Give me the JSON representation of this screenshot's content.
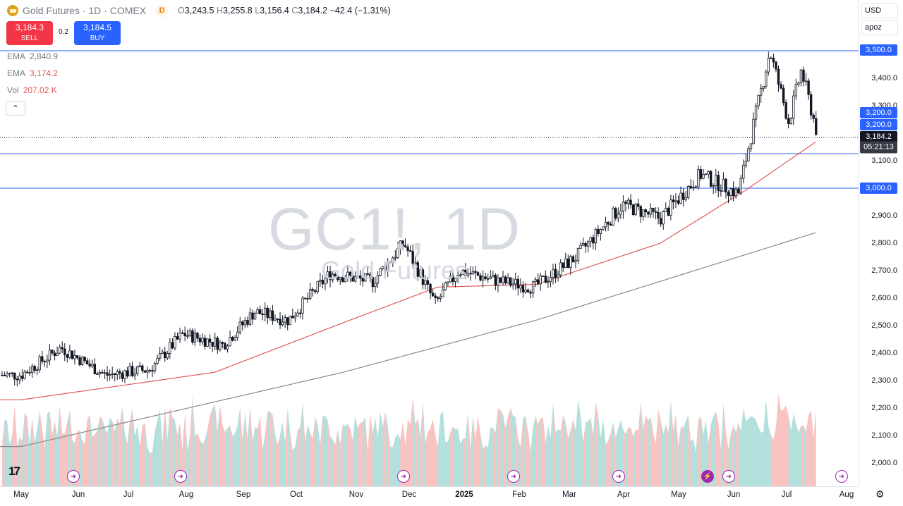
{
  "header": {
    "title": "Gold Futures · 1D · COMEX",
    "badge": "D",
    "open_label": "O",
    "open": "3,243.5",
    "high_label": "H",
    "high": "3,255.8",
    "low_label": "L",
    "low": "3,156.4",
    "close_label": "C",
    "close": "3,184.2",
    "change": "−42.4 (−1.31%)"
  },
  "trade": {
    "sell_price": "3,184.3",
    "sell_label": "SELL",
    "spread": "0.2",
    "buy_price": "3,184.5",
    "buy_label": "BUY"
  },
  "indicators": [
    {
      "name": "EMA",
      "value": "2,840.9",
      "color": "#787b86"
    },
    {
      "name": "EMA",
      "value": "3,174.2",
      "color": "#e05a5a"
    },
    {
      "name": "Vol",
      "value": "207.02 K",
      "color": "#e05a5a"
    }
  ],
  "collapse_icon": "chevron-up-icon",
  "watermark": {
    "symbol": "GC1!, 1D",
    "name": "Gold Futures"
  },
  "price_axis": {
    "currency": "USD",
    "unit_select": "apoz",
    "ticks": [
      "3,400.0",
      "3,300.0",
      "3,100.0",
      "2,900.0",
      "2,800.0",
      "2,700.0",
      "2,600.0",
      "2,500.0",
      "2,400.0",
      "2,300.0",
      "2,200.0",
      "2,100.0",
      "2,000.0"
    ],
    "labels": {
      "l3500": "3,500.0",
      "l3200a": "3,200.0",
      "l3200b": "3,200.0",
      "last": "3,184.2",
      "countdown": "05:21:13",
      "l3000": "3,000.0"
    }
  },
  "time_axis": {
    "ticks": [
      "May",
      "Jun",
      "Jul",
      "Aug",
      "Sep",
      "Oct",
      "Nov",
      "Dec",
      "2025",
      "Feb",
      "Mar",
      "Apr",
      "May",
      "Jun",
      "Jul",
      "Aug"
    ]
  },
  "colors": {
    "up": "#131722",
    "down": "#131722",
    "ema_fast": "#e05a5a",
    "ema_slow": "#8a8a8a",
    "hline": "#2962ff",
    "vol_up": "#26a69a",
    "vol_down": "#ef5350"
  },
  "chart_data": {
    "type": "candlestick",
    "symbol": "GC1!",
    "timeframe": "1D",
    "y_range": [
      1965,
      3535
    ],
    "horizontal_lines": [
      3500,
      3000,
      3200
    ],
    "last_price": 3184.2,
    "close_trajectory": [
      {
        "date": "2024-05-01",
        "close": 2320
      },
      {
        "date": "2024-05-20",
        "close": 2420
      },
      {
        "date": "2024-06-10",
        "close": 2320
      },
      {
        "date": "2024-07-01",
        "close": 2340
      },
      {
        "date": "2024-07-17",
        "close": 2470
      },
      {
        "date": "2024-08-05",
        "close": 2430
      },
      {
        "date": "2024-08-20",
        "close": 2550
      },
      {
        "date": "2024-09-05",
        "close": 2520
      },
      {
        "date": "2024-09-25",
        "close": 2690
      },
      {
        "date": "2024-10-15",
        "close": 2660
      },
      {
        "date": "2024-10-30",
        "close": 2800
      },
      {
        "date": "2024-11-14",
        "close": 2580
      },
      {
        "date": "2024-11-25",
        "close": 2700
      },
      {
        "date": "2024-12-15",
        "close": 2660
      },
      {
        "date": "2024-12-31",
        "close": 2640
      },
      {
        "date": "2025-01-20",
        "close": 2750
      },
      {
        "date": "2025-02-11",
        "close": 2940
      },
      {
        "date": "2025-03-01",
        "close": 2890
      },
      {
        "date": "2025-03-20",
        "close": 3050
      },
      {
        "date": "2025-04-07",
        "close": 2980
      },
      {
        "date": "2025-04-22",
        "close": 3500
      },
      {
        "date": "2025-05-01",
        "close": 3240
      },
      {
        "date": "2025-05-07",
        "close": 3430
      },
      {
        "date": "2025-05-15",
        "close": 3184.2
      }
    ],
    "ema_fast_points": [
      {
        "date": "2024-05-01",
        "value": 2230
      },
      {
        "date": "2024-08-01",
        "value": 2330
      },
      {
        "date": "2024-10-01",
        "value": 2510
      },
      {
        "date": "2024-11-15",
        "value": 2640
      },
      {
        "date": "2025-01-01",
        "value": 2650
      },
      {
        "date": "2025-03-01",
        "value": 2800
      },
      {
        "date": "2025-04-10",
        "value": 2990
      },
      {
        "date": "2025-05-15",
        "value": 3174.2
      }
    ],
    "ema_slow_points": [
      {
        "date": "2024-05-01",
        "value": 2060
      },
      {
        "date": "2024-10-01",
        "value": 2330
      },
      {
        "date": "2025-01-01",
        "value": 2520
      },
      {
        "date": "2025-05-15",
        "value": 2840.9
      }
    ]
  }
}
